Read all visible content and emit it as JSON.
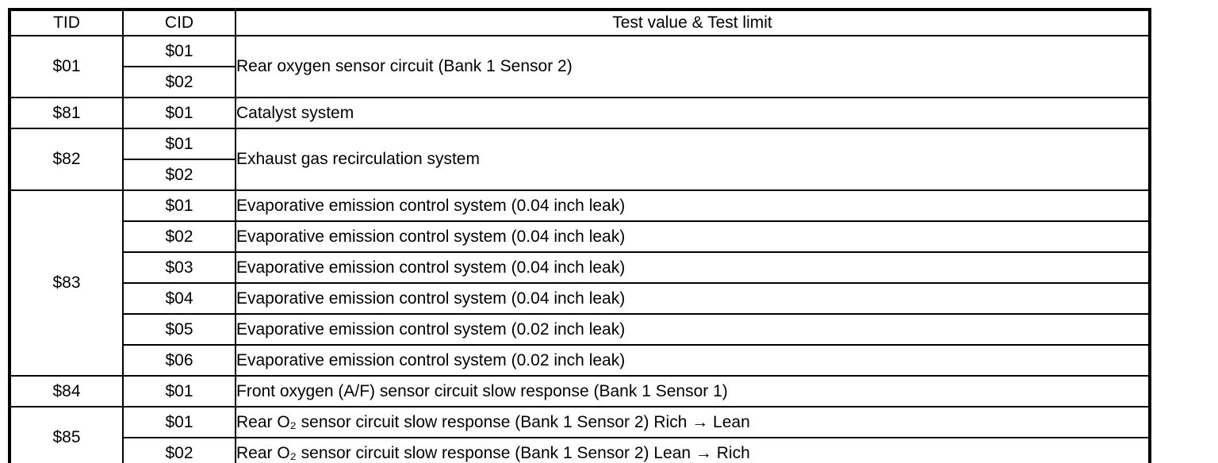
{
  "page": {
    "background_color": "#ffffff",
    "border_color": "#000000"
  },
  "table": {
    "columns": {
      "tid": "TID",
      "cid": "CID",
      "test": "Test value & Test limit"
    },
    "groups": [
      {
        "tid": "$01",
        "shared_description": "Rear oxygen sensor circuit (Bank 1 Sensor 2)",
        "rows": [
          {
            "cid": "$01"
          },
          {
            "cid": "$02"
          }
        ]
      },
      {
        "tid": "$81",
        "rows": [
          {
            "cid": "$01",
            "description": "Catalyst system"
          }
        ]
      },
      {
        "tid": "$82",
        "shared_description": "Exhaust gas recirculation system",
        "rows": [
          {
            "cid": "$01"
          },
          {
            "cid": "$02"
          }
        ]
      },
      {
        "tid": "$83",
        "rows": [
          {
            "cid": "$01",
            "description": "Evaporative emission control system (0.04 inch leak)"
          },
          {
            "cid": "$02",
            "description": "Evaporative emission control system (0.04 inch leak)"
          },
          {
            "cid": "$03",
            "description": "Evaporative emission control system (0.04 inch leak)"
          },
          {
            "cid": "$04",
            "description": "Evaporative emission control system (0.04 inch leak)"
          },
          {
            "cid": "$05",
            "description": "Evaporative emission control system (0.02 inch leak)"
          },
          {
            "cid": "$06",
            "description": "Evaporative emission control system (0.02 inch leak)"
          }
        ]
      },
      {
        "tid": "$84",
        "rows": [
          {
            "cid": "$01",
            "description": "Front oxygen (A/F) sensor circuit slow response (Bank 1 Sensor 1)"
          }
        ]
      },
      {
        "tid": "$85",
        "rows": [
          {
            "cid": "$01",
            "description": "Rear O₂ sensor circuit slow response (Bank 1 Sensor 2) Rich → Lean"
          },
          {
            "cid": "$02",
            "description": "Rear O₂ sensor circuit slow response (Bank 1 Sensor 2) Lean → Rich"
          }
        ]
      }
    ]
  }
}
